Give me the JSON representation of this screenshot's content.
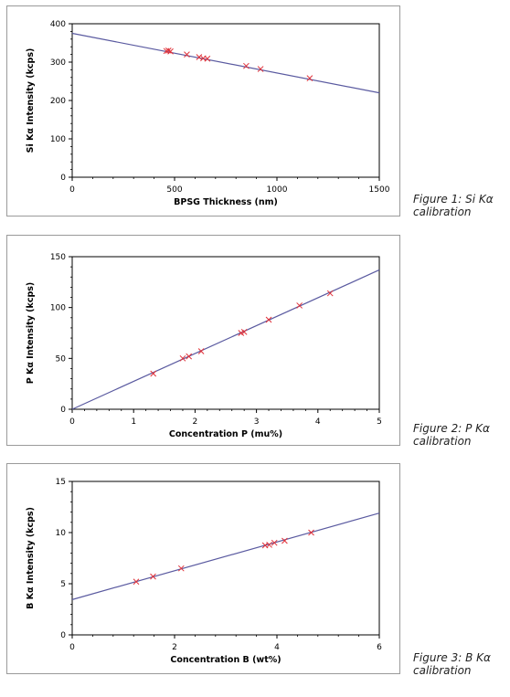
{
  "chart_data": [
    {
      "type": "scatter",
      "title": "",
      "xlabel": "BPSG Thickness (nm)",
      "ylabel": "Si Kα Intensity (kcps)",
      "xlim": [
        0,
        1500
      ],
      "ylim": [
        0,
        400
      ],
      "x_ticks": [
        0,
        500,
        1000,
        1500
      ],
      "y_ticks": [
        0,
        100,
        200,
        300,
        400
      ],
      "grid": false,
      "marker_color": "#e0323a",
      "line_color": "#5a5aa0",
      "series": [
        {
          "x": [
            460,
            470,
            480,
            560,
            620,
            640,
            660,
            850,
            920,
            1160
          ],
          "y": [
            329,
            330,
            328,
            320,
            313,
            310,
            309,
            290,
            282,
            258
          ]
        }
      ],
      "fit_line": {
        "x": [
          0,
          1500
        ],
        "y": [
          375,
          220
        ]
      }
    },
    {
      "type": "scatter",
      "title": "",
      "xlabel": "Concentration P (mu%)",
      "ylabel": "P Kα Intensity (kcps)",
      "xlim": [
        0,
        5
      ],
      "ylim": [
        0,
        150
      ],
      "x_ticks": [
        0,
        1,
        2,
        3,
        4,
        5
      ],
      "y_ticks": [
        0,
        50,
        100,
        150
      ],
      "grid": false,
      "marker_color": "#e0323a",
      "line_color": "#5a5aa0",
      "series": [
        {
          "x": [
            1.32,
            1.8,
            1.9,
            2.1,
            2.75,
            2.8,
            3.2,
            3.7,
            4.2
          ],
          "y": [
            35,
            50,
            52,
            57,
            75,
            76,
            88,
            102,
            114
          ]
        }
      ],
      "fit_line": {
        "x": [
          0,
          5
        ],
        "y": [
          0,
          137
        ]
      }
    },
    {
      "type": "scatter",
      "title": "",
      "xlabel": "Concentration B (wt%)",
      "ylabel": "B Kα Intensity (kcps)",
      "xlim": [
        0,
        6
      ],
      "ylim": [
        0,
        15
      ],
      "x_ticks": [
        0,
        2,
        4,
        6
      ],
      "y_ticks": [
        0,
        5,
        10,
        15
      ],
      "grid": false,
      "marker_color": "#e0323a",
      "line_color": "#5a5aa0",
      "series": [
        {
          "x": [
            1.25,
            1.58,
            2.13,
            3.77,
            3.85,
            3.95,
            4.15,
            4.67
          ],
          "y": [
            5.2,
            5.7,
            6.5,
            8.75,
            8.8,
            9.0,
            9.2,
            10.0
          ]
        }
      ],
      "fit_line": {
        "x": [
          0,
          6
        ],
        "y": [
          3.45,
          11.9
        ]
      }
    }
  ],
  "captions": [
    "Figure 1: Si Kα calibration",
    "Figure 2: P Kα calibration",
    "Figure 3: B Kα calibration"
  ]
}
